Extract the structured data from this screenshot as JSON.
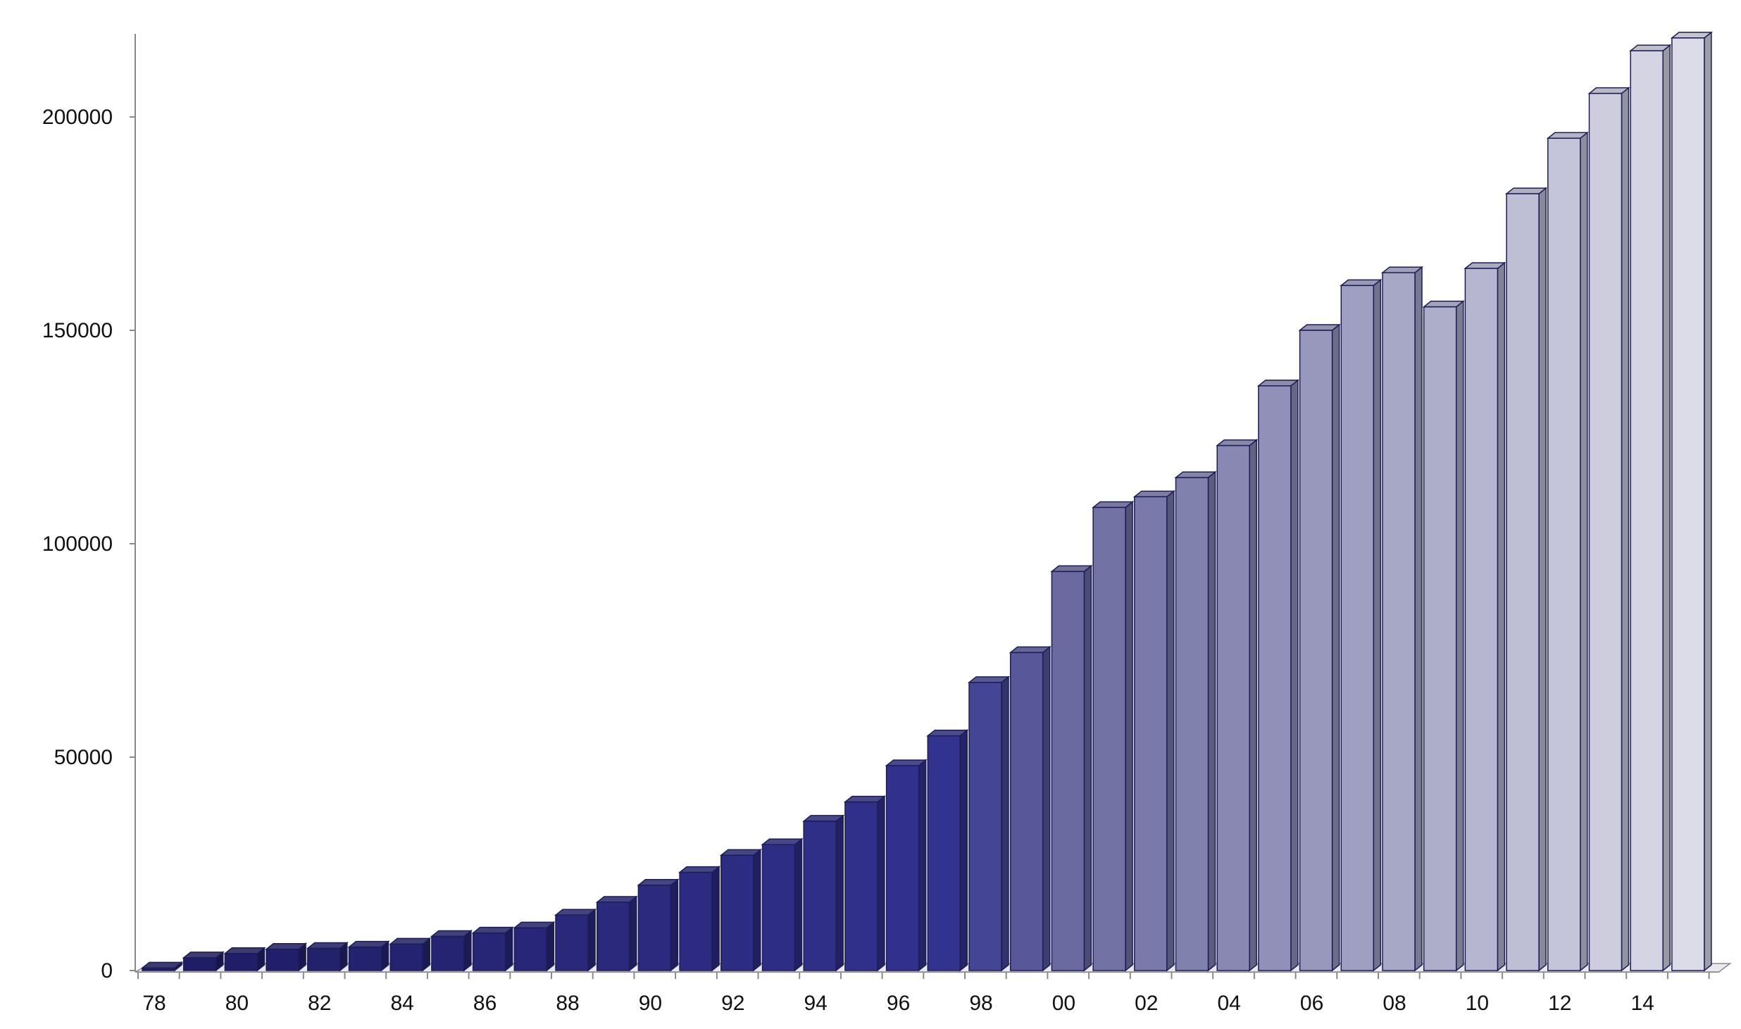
{
  "chart_data": {
    "type": "bar",
    "style": "3d-columns",
    "categories": [
      "78",
      "79",
      "80",
      "81",
      "82",
      "83",
      "84",
      "85",
      "86",
      "87",
      "88",
      "89",
      "90",
      "91",
      "92",
      "93",
      "94",
      "95",
      "96",
      "97",
      "98",
      "99",
      "00",
      "01",
      "02",
      "03",
      "04",
      "05",
      "06",
      "07",
      "08",
      "09",
      "10",
      "11",
      "12",
      "13",
      "14",
      "15"
    ],
    "tick_labels": [
      "78",
      "80",
      "82",
      "84",
      "86",
      "88",
      "90",
      "92",
      "94",
      "96",
      "98",
      "00",
      "02",
      "04",
      "06",
      "08",
      "10",
      "12",
      "14"
    ],
    "values": [
      600,
      3000,
      4000,
      5000,
      5200,
      5500,
      6200,
      8000,
      8800,
      10000,
      13000,
      16000,
      20000,
      23000,
      27000,
      29500,
      35000,
      39500,
      48000,
      55000,
      67500,
      74500,
      93500,
      108500,
      111000,
      115500,
      123000,
      137000,
      150000,
      160500,
      163500,
      155500,
      164500,
      182000,
      195000,
      205500,
      215500,
      218500
    ],
    "ylim": [
      0,
      220000
    ],
    "yticks": [
      0,
      50000,
      100000,
      150000,
      200000
    ],
    "ytick_labels": [
      "0",
      "50000",
      "100000",
      "150000",
      "200000"
    ],
    "title": "",
    "xlabel": "",
    "ylabel": "",
    "grid": false,
    "legend": "none",
    "colors": {
      "dark": "#1e1c63",
      "mid": "#32328f",
      "mid_light": "#6a6aa0",
      "light": "#dcdce8",
      "outline": "#1c1c5a",
      "axis": "#8a8a8a"
    }
  }
}
